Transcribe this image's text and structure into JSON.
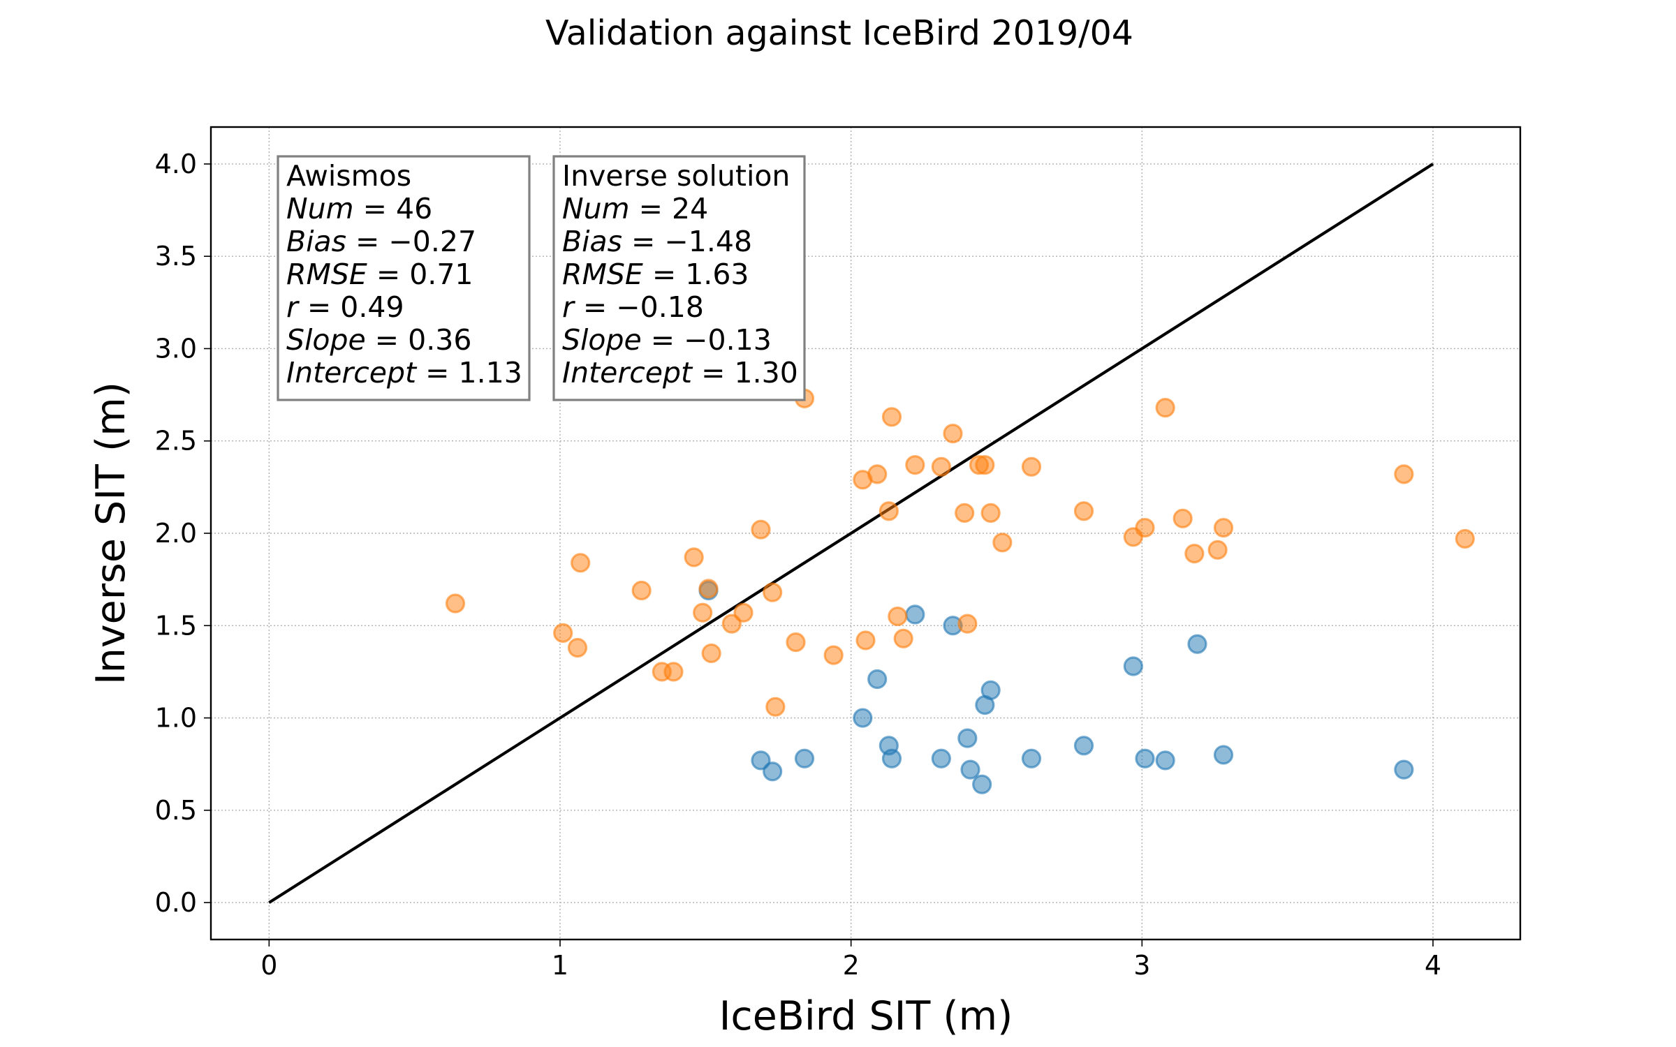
{
  "chart_data": {
    "type": "scatter",
    "title": "Validation against IceBird 2019/04",
    "xlabel": "IceBird SIT (m)",
    "ylabel": "Inverse SIT (m)",
    "xlim": [
      -0.2,
      4.3
    ],
    "ylim": [
      -0.2,
      4.2
    ],
    "x_ticks": [
      0,
      1,
      2,
      3,
      4
    ],
    "x_tick_labels": [
      "0",
      "1",
      "2",
      "3",
      "4"
    ],
    "y_ticks": [
      0.0,
      0.5,
      1.0,
      1.5,
      2.0,
      2.5,
      3.0,
      3.5,
      4.0
    ],
    "y_tick_labels": [
      "0.0",
      "0.5",
      "1.0",
      "1.5",
      "2.0",
      "2.5",
      "3.0",
      "3.5",
      "4.0"
    ],
    "grid": true,
    "one_to_one_line": {
      "x": [
        0,
        4
      ],
      "y": [
        0,
        4
      ],
      "color": "#000000"
    },
    "series": [
      {
        "name": "Inverse solution",
        "color": "#1f77b4",
        "x": [
          1.51,
          2.22,
          2.35,
          3.19,
          2.97,
          2.09,
          2.48,
          2.46,
          2.04,
          2.13,
          2.8,
          2.4,
          1.69,
          1.73,
          1.84,
          2.14,
          2.31,
          2.41,
          2.62,
          3.01,
          3.08,
          3.28,
          3.9,
          2.45
        ],
        "y": [
          1.69,
          1.56,
          1.5,
          1.4,
          1.28,
          1.21,
          1.15,
          1.07,
          1.0,
          0.85,
          0.85,
          0.89,
          0.77,
          0.71,
          0.78,
          0.78,
          0.78,
          0.72,
          0.78,
          0.78,
          0.77,
          0.8,
          0.72,
          0.64
        ]
      },
      {
        "name": "Awismos",
        "color": "#ff7f0e",
        "x": [
          0.64,
          1.01,
          1.06,
          1.07,
          1.28,
          1.35,
          1.39,
          1.46,
          1.49,
          1.51,
          1.52,
          1.59,
          1.63,
          1.69,
          1.73,
          1.74,
          1.81,
          1.84,
          1.94,
          2.04,
          2.05,
          2.09,
          2.13,
          2.14,
          2.16,
          2.18,
          2.22,
          2.31,
          2.35,
          2.39,
          2.4,
          2.44,
          2.46,
          2.48,
          2.52,
          2.62,
          2.8,
          2.97,
          3.01,
          3.08,
          3.14,
          3.18,
          3.26,
          3.28,
          3.9,
          4.11
        ],
        "y": [
          1.62,
          1.46,
          1.38,
          1.84,
          1.69,
          1.25,
          1.25,
          1.87,
          1.57,
          1.7,
          1.35,
          1.51,
          1.57,
          2.02,
          1.68,
          1.06,
          1.41,
          2.73,
          1.34,
          2.29,
          1.42,
          2.32,
          2.12,
          2.63,
          1.55,
          1.43,
          2.37,
          2.36,
          2.54,
          2.11,
          1.51,
          2.37,
          2.37,
          2.11,
          1.95,
          2.36,
          2.12,
          1.98,
          2.03,
          2.68,
          2.08,
          1.89,
          1.91,
          2.03,
          2.32,
          1.97
        ]
      }
    ],
    "stats_boxes": [
      {
        "name": "Awismos",
        "lines": [
          {
            "label": "Num",
            "value": "46"
          },
          {
            "label": "Bias",
            "value": "−0.27"
          },
          {
            "label": "RMSE",
            "value": "0.71"
          },
          {
            "label": "r",
            "value": "0.49"
          },
          {
            "label": "Slope",
            "value": "0.36"
          },
          {
            "label": "Intercept",
            "value": "1.13"
          }
        ]
      },
      {
        "name": "Inverse solution",
        "lines": [
          {
            "label": "Num",
            "value": "24"
          },
          {
            "label": "Bias",
            "value": "−1.48"
          },
          {
            "label": "RMSE",
            "value": "1.63"
          },
          {
            "label": "r",
            "value": "−0.18"
          },
          {
            "label": "Slope",
            "value": "−0.13"
          },
          {
            "label": "Intercept",
            "value": "1.30"
          }
        ]
      }
    ]
  }
}
